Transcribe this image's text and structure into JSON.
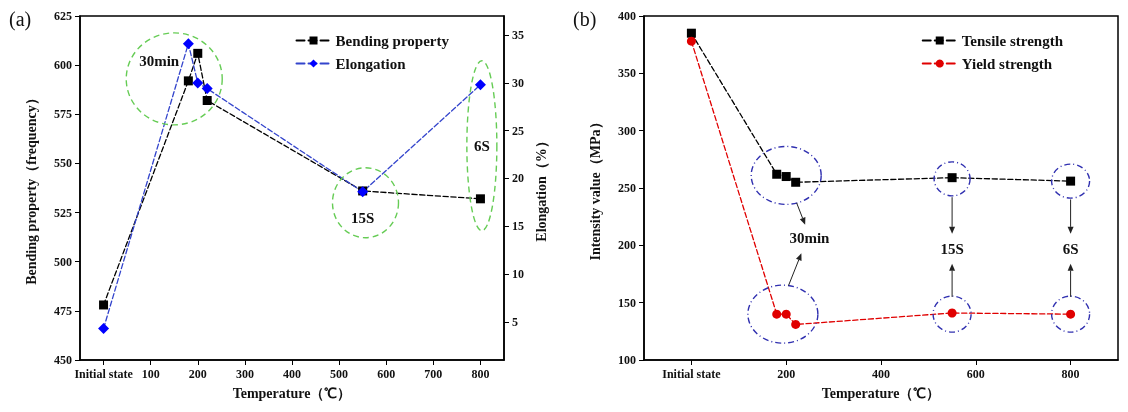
{
  "chart_data": [
    {
      "type": "line",
      "title": "(a)",
      "xlabel": "Temperature（℃）",
      "ylabel": "Bending property（frequency）",
      "y2label": "Elongation（%）",
      "x": [
        0,
        180,
        200,
        220,
        550,
        800
      ],
      "xlim": [
        -50,
        850
      ],
      "xticks": [
        {
          "value": 0,
          "label": "Initial state"
        },
        100,
        200,
        300,
        400,
        500,
        600,
        700,
        800
      ],
      "ylim": [
        450,
        625
      ],
      "yticks": [
        450,
        475,
        500,
        525,
        550,
        575,
        600,
        625
      ],
      "y2lim": [
        1,
        37
      ],
      "y2ticks": [
        5,
        10,
        15,
        20,
        25,
        30,
        35
      ],
      "series": [
        {
          "name": "Bending property",
          "color": "#000000",
          "marker": "square",
          "values": [
            478,
            592,
            606,
            582,
            536,
            532
          ]
        },
        {
          "name": "Elongation",
          "color": "#0000ff",
          "marker": "diamond",
          "axis": "y2",
          "values": [
            4.3,
            34.1,
            30.0,
            29.4,
            18.6,
            29.8
          ]
        }
      ],
      "annotations": [
        "30min",
        "15S",
        "6S"
      ],
      "line_style": "dashed",
      "legend": "top right",
      "grid": false
    },
    {
      "type": "line",
      "title": "(b)",
      "xlabel": "Temperature（℃）",
      "ylabel": "Intensity value（MPa）",
      "x": [
        0,
        180,
        200,
        220,
        550,
        800
      ],
      "xlim": [
        -100,
        900
      ],
      "xticks": [
        {
          "value": 0,
          "label": "Initial state"
        },
        200,
        400,
        600,
        800
      ],
      "ylim": [
        100,
        400
      ],
      "yticks": [
        100,
        150,
        200,
        250,
        300,
        350,
        400
      ],
      "series": [
        {
          "name": "Tensile strength",
          "color": "#000000",
          "marker": "square",
          "values": [
            385,
            262,
            260,
            255,
            259,
            256
          ]
        },
        {
          "name": "Yield strength",
          "color": "#e00000",
          "marker": "circle",
          "values": [
            378,
            140,
            140,
            131,
            141,
            140
          ]
        }
      ],
      "annotations": [
        "30min",
        "15S",
        "6S"
      ],
      "line_style": "dashed",
      "legend": "top right",
      "grid": false
    }
  ]
}
